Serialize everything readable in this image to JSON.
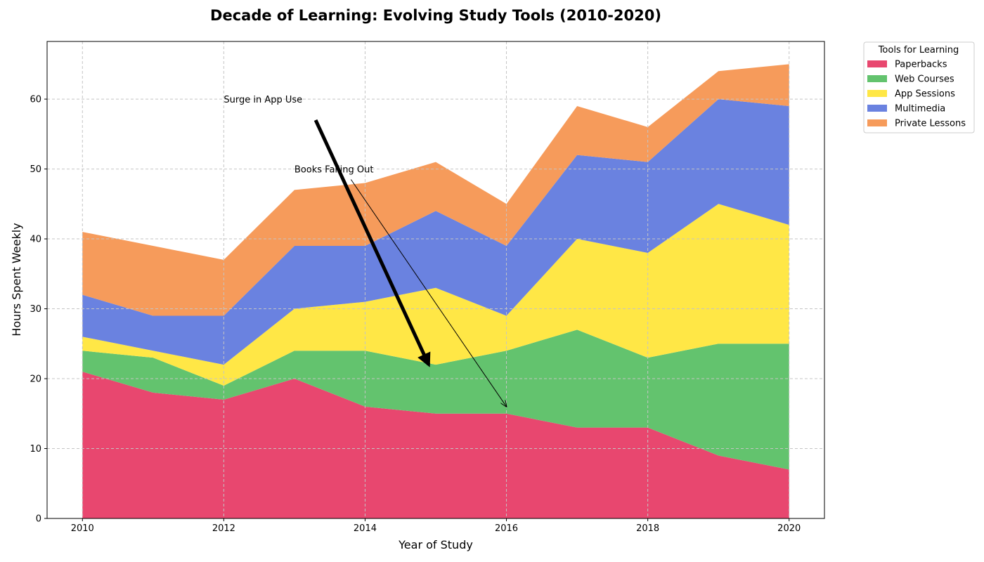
{
  "chart_data": {
    "type": "area",
    "stacked": true,
    "title": "Decade of Learning: Evolving Study Tools (2010-2020)",
    "xlabel": "Year of Study",
    "ylabel": "Hours Spent Weekly",
    "x": [
      2010,
      2011,
      2012,
      2013,
      2014,
      2015,
      2016,
      2017,
      2018,
      2019,
      2020
    ],
    "xticks": [
      "2010",
      "2012",
      "2014",
      "2016",
      "2018",
      "2020"
    ],
    "yticks": [
      "0",
      "10",
      "20",
      "30",
      "40",
      "50",
      "60"
    ],
    "xlim": [
      2009.5,
      2020.5
    ],
    "ylim": [
      0,
      68.25
    ],
    "grid": true,
    "legend": {
      "title": "Tools for Learning",
      "placement": "outside-top-right"
    },
    "series": [
      {
        "name": "Paperbacks",
        "color": "#e8476f",
        "values": [
          21,
          18,
          17,
          20,
          16,
          15,
          15,
          13,
          13,
          9,
          7
        ]
      },
      {
        "name": "Web Courses",
        "color": "#63c36e",
        "values": [
          3,
          5,
          2,
          4,
          8,
          7,
          9,
          14,
          10,
          16,
          18
        ]
      },
      {
        "name": "App Sessions",
        "color": "#ffe746",
        "values": [
          2,
          1,
          3,
          6,
          7,
          11,
          5,
          13,
          15,
          20,
          17
        ]
      },
      {
        "name": "Multimedia",
        "color": "#6a82e0",
        "values": [
          6,
          5,
          7,
          9,
          8,
          11,
          10,
          12,
          13,
          15,
          17
        ]
      },
      {
        "name": "Private Lessons",
        "color": "#f69b5b",
        "values": [
          9,
          10,
          8,
          8,
          9,
          7,
          6,
          7,
          5,
          4,
          6
        ]
      }
    ],
    "annotations": [
      {
        "text": "Surge in App Use",
        "text_at": [
          2012,
          60
        ],
        "arrow_from": [
          2013.3,
          57
        ],
        "arrow_to": [
          2014.9,
          22
        ],
        "style": "thick"
      },
      {
        "text": "Books Falling Out",
        "text_at": [
          2013,
          50
        ],
        "arrow_from": [
          2013.8,
          48.5
        ],
        "arrow_to": [
          2016,
          16
        ],
        "style": "thin"
      }
    ]
  }
}
